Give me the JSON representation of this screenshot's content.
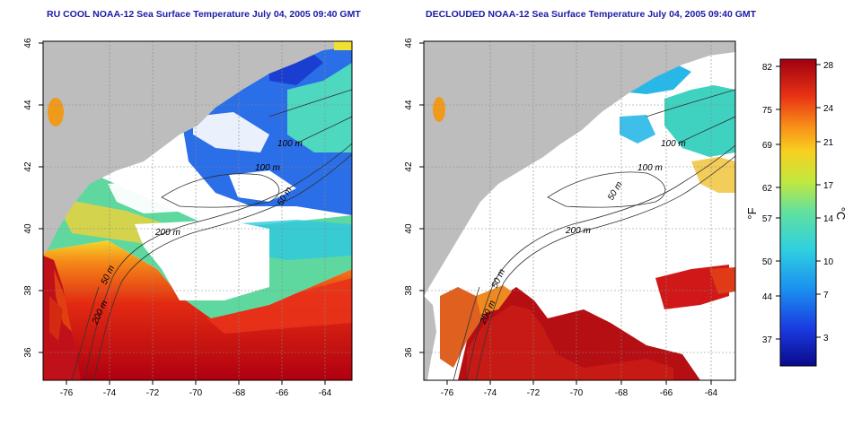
{
  "left_map": {
    "title": "RU COOL NOAA-12 Sea Surface Temperature July 04, 2005 09:40 GMT",
    "x_ticks": [
      "-76",
      "-74",
      "-72",
      "-70",
      "-68",
      "-66",
      "-64"
    ],
    "y_ticks": [
      "46",
      "44",
      "42",
      "40",
      "38",
      "36"
    ],
    "contour_labels": [
      "100 m",
      "100 m",
      "50 m",
      "200 m",
      "50 m",
      "200 m"
    ]
  },
  "right_map": {
    "title": "DECLOUDED NOAA-12 Sea Surface Temperature July 04, 2005 09:40 GMT",
    "x_ticks": [
      "-76",
      "-74",
      "-72",
      "-70",
      "-68",
      "-66",
      "-64"
    ],
    "y_ticks": [
      "46",
      "44",
      "42",
      "40",
      "38",
      "36"
    ],
    "contour_labels": [
      "100 m",
      "100 m",
      "50 m",
      "200 m",
      "50 m",
      "200 m"
    ]
  },
  "colorbar": {
    "fahrenheit_unit": "°F",
    "celsius_unit": "°C",
    "fahrenheit_ticks": [
      "82",
      "75",
      "69",
      "62",
      "57",
      "50",
      "44",
      "37"
    ],
    "celsius_ticks": [
      "28",
      "24",
      "21",
      "17",
      "14",
      "10",
      "7",
      "3"
    ]
  },
  "colors": {
    "land": "#bdbdbd",
    "ocean_clear": "#ffffff",
    "warm": "#c0101a",
    "cool": "#2a5fe0",
    "title": "#1a1aa6"
  }
}
